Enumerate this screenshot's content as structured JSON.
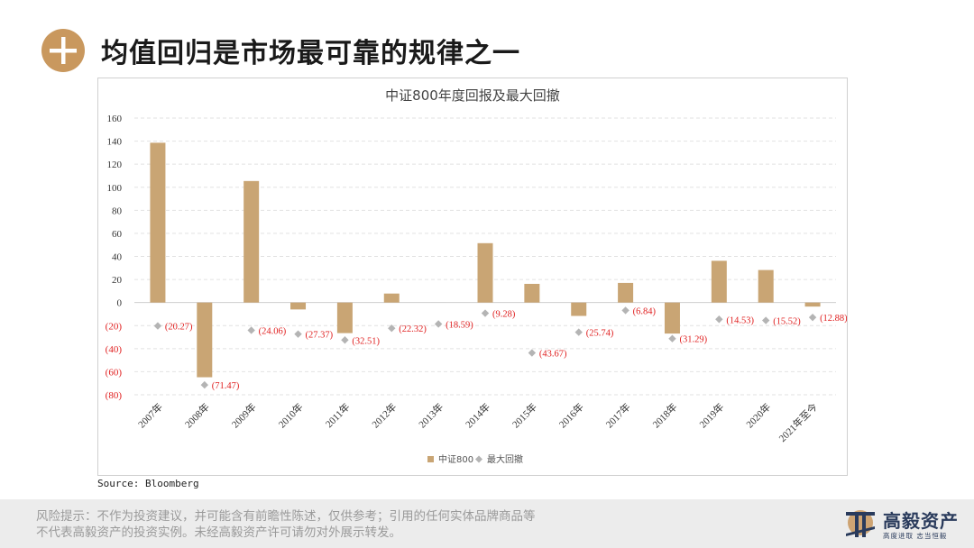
{
  "header": {
    "title": "均值回归是市场最可靠的规律之一",
    "icon": "plus-icon"
  },
  "chart_data": {
    "type": "bar",
    "title": "中证800年度回报及最大回撤",
    "categories": [
      "2007年",
      "2008年",
      "2009年",
      "2010年",
      "2011年",
      "2012年",
      "2013年",
      "2014年",
      "2015年",
      "2016年",
      "2017年",
      "2018年",
      "2019年",
      "2020年",
      "2021年至今"
    ],
    "series": [
      {
        "name": "中证800",
        "type": "bar",
        "color": "#c9a574",
        "values": [
          138.6,
          -64.8,
          105.4,
          -6.0,
          -26.5,
          7.8,
          0,
          51.5,
          16.2,
          -11.6,
          17.0,
          -26.9,
          36.2,
          28.2,
          -3.5
        ]
      },
      {
        "name": "最大回撤",
        "type": "scatter",
        "color": "#b4b4b4",
        "values": [
          -20.27,
          -71.47,
          -24.06,
          -27.37,
          -32.51,
          -22.32,
          -18.59,
          -9.28,
          -43.67,
          -25.74,
          -6.84,
          -31.29,
          -14.53,
          -15.52,
          -12.88
        ],
        "labels": [
          "(20.27)",
          "(71.47)",
          "(24.06)",
          "(27.37)",
          "(32.51)",
          "(22.32)",
          "(18.59)",
          "(9.28)",
          "(43.67)",
          "(25.74)",
          "(6.84)",
          "(31.29)",
          "(14.53)",
          "(15.52)",
          "(12.88)"
        ]
      }
    ],
    "ylim": [
      -80,
      160
    ],
    "yticks": [
      160,
      140,
      120,
      100,
      80,
      60,
      40,
      20,
      0,
      -20,
      -40,
      -60,
      -80
    ],
    "ytick_labels": [
      "160",
      "140",
      "120",
      "100",
      "80",
      "60",
      "40",
      "20",
      "0",
      "(20)",
      "(40)",
      "(60)",
      "(80)"
    ],
    "negative_tick_color": "#e02020",
    "label_color": "#e02020",
    "grid": true,
    "legend": {
      "position": "bottom-center",
      "entries": [
        "中证800",
        "最大回撤"
      ]
    },
    "xlabel": "",
    "ylabel": ""
  },
  "source": "Source: Bloomberg",
  "footer": {
    "disclaimer": "风险提示：不作为投资建议，并可能含有前瞻性陈述，仅供参考；引用的任何实体品牌商品等不代表高毅资产的投资实例。未经高毅资产许可请勿对外展示转发。",
    "logo_name": "高毅资产",
    "logo_slogan": "高度进取 志当恒毅"
  }
}
